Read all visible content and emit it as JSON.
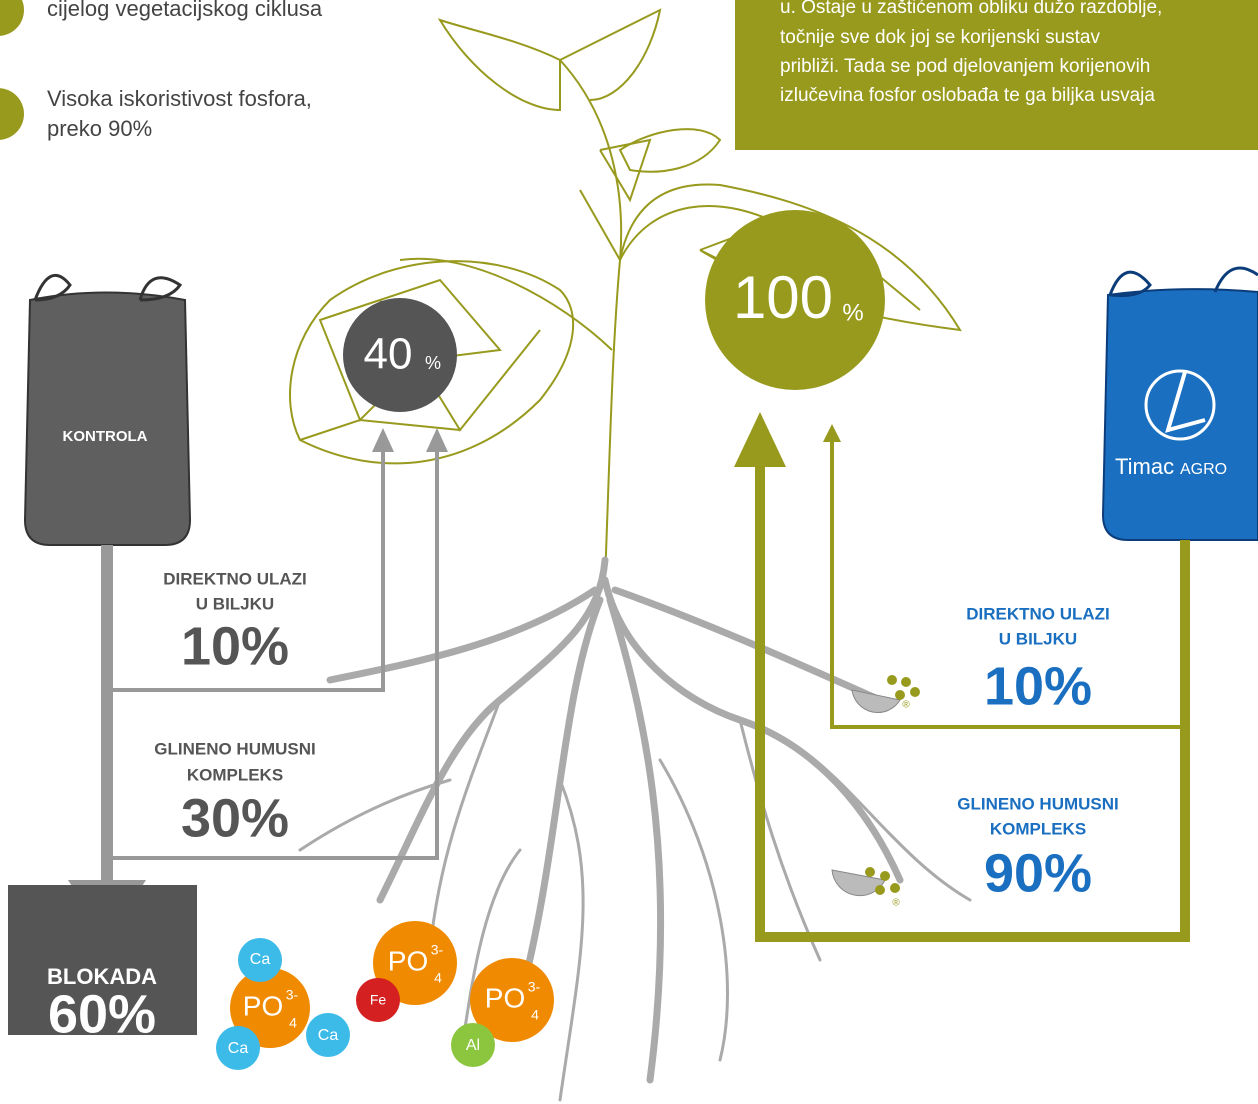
{
  "bullets": [
    "cijelog vegetacijskog ciklusa",
    [
      "Visoka iskoristivost fosfora,",
      "preko 90%"
    ]
  ],
  "info_box": [
    "u. Ostaje u zaštićenom obliku dužo razdoblje,",
    "točnije sve dok joj se korijenski sustav",
    "približi. Tada se pod djelovanjem korijenovih",
    "izlučevina fosfor oslobađa te ga biljka usvaja"
  ],
  "left": {
    "bag": "KONTROLA",
    "result": {
      "value": "40",
      "unit": "%"
    },
    "direct": {
      "label": [
        "DIREKTNO ULAZI",
        "U BILJKU"
      ],
      "value": "10%"
    },
    "clay": {
      "label": [
        "GLINENO HUMUSNI",
        "KOMPLEKS"
      ],
      "value": "30%"
    },
    "blocked": {
      "label": "BLOKADA",
      "value": "60%"
    }
  },
  "right": {
    "bag": {
      "brand": "Timac",
      "sub": "AGRO"
    },
    "result": {
      "value": "100",
      "unit": "%"
    },
    "direct": {
      "label": [
        "DIREKTNO ULAZI",
        "U BILJKU"
      ],
      "value": "10%"
    },
    "clay": {
      "label": [
        "GLINENO HUMUSNI",
        "KOMPLEKS"
      ],
      "value": "90%"
    }
  },
  "molecules": {
    "phosphate": "PO",
    "charge": "3-",
    "sub": "4",
    "ca": "Ca",
    "fe": "Fe",
    "al": "Al",
    "mark": "®"
  }
}
